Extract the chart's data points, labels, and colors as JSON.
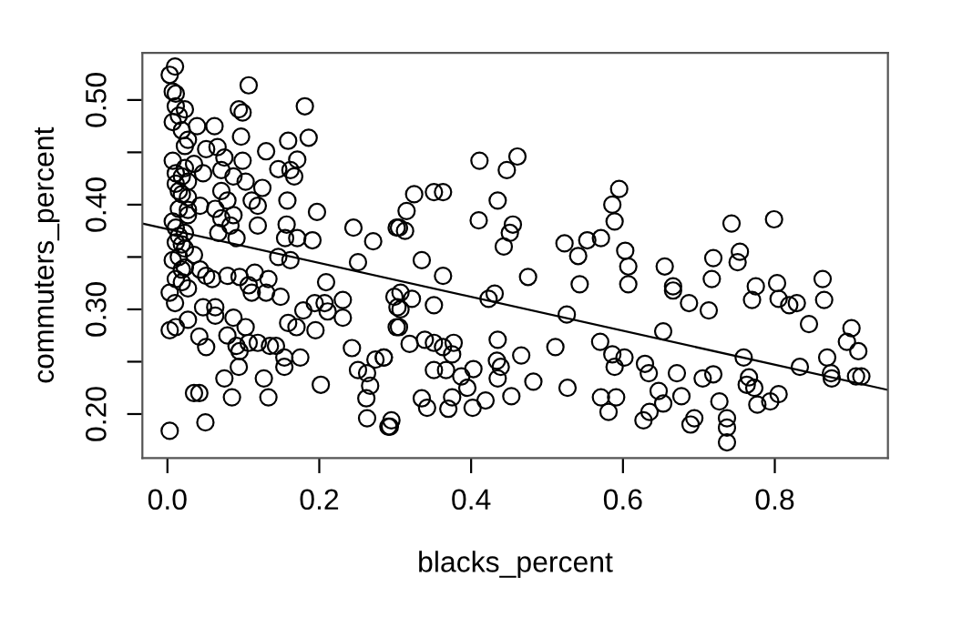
{
  "chart_data": {
    "type": "scatter",
    "xlabel": "blacks_percent",
    "ylabel": "commuters_percent",
    "xlim": [
      -0.033,
      0.949
    ],
    "ylim": [
      0.158,
      0.545
    ],
    "xticks": [
      {
        "value": 0,
        "label": "0.0"
      },
      {
        "value": 0.2,
        "label": "0.2"
      },
      {
        "value": 0.4,
        "label": "0.4"
      },
      {
        "value": 0.6,
        "label": "0.6"
      },
      {
        "value": 0.8,
        "label": "0.8"
      }
    ],
    "yticks": [
      {
        "value": 0.2,
        "label": "0.20"
      },
      {
        "value": 0.25,
        "label": null
      },
      {
        "value": 0.3,
        "label": "0.30"
      },
      {
        "value": 0.35,
        "label": null
      },
      {
        "value": 0.4,
        "label": "0.40"
      },
      {
        "value": 0.45,
        "label": null
      },
      {
        "value": 0.5,
        "label": "0.50"
      }
    ],
    "grid": false,
    "legend": false,
    "marker": "circle",
    "series": [
      {
        "color": "#000000",
        "x": [
          0.411,
          0.461,
          0.447,
          0.325,
          0.351,
          0.363,
          0.315,
          0.305,
          0.313,
          0.435,
          0.41,
          0.455,
          0.451,
          0.443,
          0.523,
          0.541,
          0.553,
          0.571,
          0.595,
          0.586,
          0.589,
          0.603,
          0.607,
          0.607,
          0.543,
          0.335,
          0.363,
          0.475,
          0.431,
          0.423,
          0.526,
          0.307,
          0.307,
          0.322,
          0.351,
          0.305,
          0.319,
          0.339,
          0.351,
          0.363,
          0.377,
          0.351,
          0.367,
          0.375,
          0.387,
          0.403,
          0.395,
          0.375,
          0.37,
          0.402,
          0.419,
          0.335,
          0.342,
          0.435,
          0.434,
          0.439,
          0.466,
          0.435,
          0.482,
          0.453,
          0.511,
          0.527,
          0.57,
          0.586,
          0.602,
          0.589,
          0.571,
          0.591,
          0.581,
          0.629,
          0.634,
          0.635,
          0.627,
          0.295,
          0.291,
          0.285,
          0.743,
          0.799,
          0.754,
          0.751,
          0.719,
          0.717,
          0.655,
          0.666,
          0.666,
          0.687,
          0.713,
          0.775,
          0.77,
          0.803,
          0.805,
          0.819,
          0.829,
          0.863,
          0.865,
          0.845,
          0.901,
          0.895,
          0.91,
          0.907,
          0.914,
          0.869,
          0.874,
          0.875,
          0.833,
          0.759,
          0.766,
          0.763,
          0.773,
          0.805,
          0.794,
          0.777,
          0.727,
          0.737,
          0.737,
          0.737,
          0.694,
          0.689,
          0.719,
          0.705,
          0.677,
          0.671,
          0.653,
          0.647,
          0.653,
          0.01,
          0.003,
          0.107,
          0.007,
          0.011,
          0.094,
          0.099,
          0.181,
          0.007,
          0.019,
          0.039,
          0.062,
          0.097,
          0.159,
          0.186,
          0.027,
          0.051,
          0.066,
          0.075,
          0.13,
          0.171,
          0.146,
          0.162,
          0.167,
          0.099,
          0.011,
          0.035,
          0.047,
          0.071,
          0.087,
          0.103,
          0.125,
          0.015,
          0.027,
          0.071,
          0.079,
          0.111,
          0.119,
          0.158,
          0.197,
          0.043,
          0.015,
          0.027,
          0.063,
          0.071,
          0.087,
          0.083,
          0.119,
          0.157,
          0.245,
          0.302,
          0.155,
          0.171,
          0.191,
          0.271,
          0.091,
          0.067,
          0.011,
          0.011,
          0.023,
          0.035,
          0.007,
          0.019,
          0.043,
          0.146,
          0.162,
          0.251,
          0.051,
          0.079,
          0.011,
          0.027,
          0.059,
          0.095,
          0.107,
          0.115,
          0.133,
          0.111,
          0.13,
          0.149,
          0.01,
          0.209,
          0.207,
          0.231,
          0.194,
          0.179,
          0.211,
          0.231,
          0.047,
          0.063,
          0.063,
          0.087,
          0.103,
          0.027,
          0.003,
          0.011,
          0.159,
          0.17,
          0.195,
          0.042,
          0.051,
          0.079,
          0.091,
          0.095,
          0.107,
          0.119,
          0.135,
          0.143,
          0.154,
          0.154,
          0.175,
          0.094,
          0.075,
          0.127,
          0.085,
          0.133,
          0.202,
          0.243,
          0.251,
          0.274,
          0.285,
          0.263,
          0.267,
          0.262,
          0.263,
          0.293,
          0.035,
          0.042,
          0.05,
          0.003,
          0.299,
          0.303,
          0.302,
          0.003,
          0.019,
          0.023,
          0.007,
          0.027,
          0.019,
          0.007,
          0.023,
          0.015,
          0.023,
          0.011,
          0.015,
          0.019,
          0.023,
          0.011,
          0.027,
          0.019,
          0.015,
          0.023
        ],
        "values": [
          0.442,
          0.446,
          0.433,
          0.41,
          0.412,
          0.412,
          0.394,
          0.378,
          0.375,
          0.404,
          0.385,
          0.381,
          0.373,
          0.36,
          0.363,
          0.351,
          0.366,
          0.368,
          0.415,
          0.4,
          0.384,
          0.356,
          0.341,
          0.324,
          0.324,
          0.347,
          0.332,
          0.331,
          0.315,
          0.31,
          0.295,
          0.316,
          0.3,
          0.31,
          0.304,
          0.283,
          0.267,
          0.271,
          0.268,
          0.264,
          0.268,
          0.242,
          0.242,
          0.257,
          0.236,
          0.243,
          0.225,
          0.216,
          0.205,
          0.206,
          0.213,
          0.215,
          0.206,
          0.271,
          0.251,
          0.245,
          0.256,
          0.234,
          0.231,
          0.217,
          0.264,
          0.225,
          0.269,
          0.257,
          0.254,
          0.245,
          0.216,
          0.216,
          0.202,
          0.248,
          0.239,
          0.202,
          0.194,
          0.194,
          0.188,
          0.254,
          0.382,
          0.386,
          0.355,
          0.345,
          0.349,
          0.329,
          0.341,
          0.322,
          0.318,
          0.306,
          0.299,
          0.322,
          0.309,
          0.325,
          0.31,
          0.304,
          0.306,
          0.329,
          0.309,
          0.286,
          0.282,
          0.269,
          0.26,
          0.236,
          0.236,
          0.254,
          0.239,
          0.234,
          0.245,
          0.254,
          0.235,
          0.228,
          0.225,
          0.219,
          0.212,
          0.209,
          0.212,
          0.196,
          0.187,
          0.173,
          0.196,
          0.19,
          0.238,
          0.234,
          0.217,
          0.239,
          0.279,
          0.222,
          0.21,
          0.532,
          0.524,
          0.514,
          0.508,
          0.494,
          0.491,
          0.488,
          0.494,
          0.479,
          0.471,
          0.475,
          0.475,
          0.465,
          0.461,
          0.464,
          0.462,
          0.453,
          0.455,
          0.445,
          0.451,
          0.443,
          0.434,
          0.433,
          0.427,
          0.442,
          0.43,
          0.439,
          0.43,
          0.433,
          0.427,
          0.422,
          0.416,
          0.413,
          0.407,
          0.413,
          0.404,
          0.404,
          0.399,
          0.404,
          0.393,
          0.399,
          0.396,
          0.39,
          0.396,
          0.387,
          0.39,
          0.38,
          0.38,
          0.381,
          0.378,
          0.378,
          0.368,
          0.368,
          0.366,
          0.365,
          0.368,
          0.373,
          0.378,
          0.364,
          0.358,
          0.352,
          0.347,
          0.338,
          0.338,
          0.35,
          0.347,
          0.345,
          0.332,
          0.332,
          0.329,
          0.32,
          0.329,
          0.331,
          0.323,
          0.335,
          0.329,
          0.316,
          0.316,
          0.312,
          0.306,
          0.326,
          0.306,
          0.309,
          0.306,
          0.299,
          0.298,
          0.292,
          0.302,
          0.302,
          0.294,
          0.292,
          0.283,
          0.29,
          0.28,
          0.283,
          0.287,
          0.283,
          0.28,
          0.274,
          0.264,
          0.275,
          0.265,
          0.26,
          0.268,
          0.268,
          0.265,
          0.265,
          0.254,
          0.245,
          0.254,
          0.245,
          0.234,
          0.234,
          0.216,
          0.216,
          0.228,
          0.263,
          0.242,
          0.252,
          0.254,
          0.239,
          0.227,
          0.215,
          0.196,
          0.188,
          0.22,
          0.22,
          0.192,
          0.184,
          0.312,
          0.302,
          0.283,
          0.316,
          0.326,
          0.373,
          0.384,
          0.422,
          0.427,
          0.442,
          0.456,
          0.485,
          0.491,
          0.506,
          0.35,
          0.362,
          0.34,
          0.42,
          0.395,
          0.41,
          0.37,
          0.435
        ]
      },
      {
        "type": "line",
        "color": "#000000",
        "marker": "none",
        "line_style": "solid",
        "x": [
          -0.033,
          0.949
        ],
        "values": [
          0.382,
          0.223
        ]
      }
    ]
  }
}
